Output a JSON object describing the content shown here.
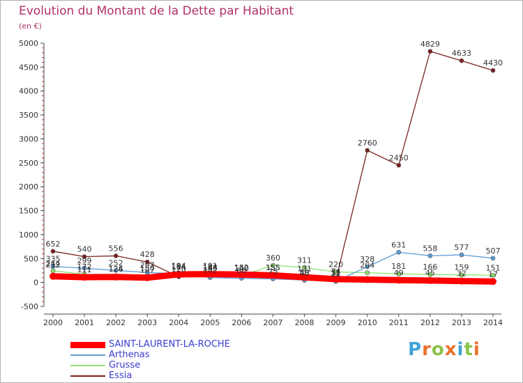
{
  "header": {
    "title": "Evolution du Montant de la Dette par Habitant",
    "subtitle": "(en €)"
  },
  "brand": {
    "text": "Proxiti",
    "letter_colors": [
      "#3fa3d6",
      "#e8702a",
      "#8bc34a",
      "#e8702a",
      "#3fa3d6",
      "#8bc34a",
      "#e8702a"
    ]
  },
  "chart_data": {
    "type": "line",
    "categories": [
      "2000",
      "2001",
      "2002",
      "2003",
      "2004",
      "2005",
      "2006",
      "2007",
      "2008",
      "2009",
      "2010",
      "2011",
      "2012",
      "2013",
      "2014"
    ],
    "ylim": [
      -500,
      5000
    ],
    "yticks": [
      -500,
      0,
      500,
      1000,
      1500,
      2000,
      2500,
      3000,
      3500,
      4000,
      4500,
      5000
    ],
    "grid": false,
    "legend_position": "bottom-left",
    "series": [
      {
        "name": "SAINT-LAURENT-LA-ROCHE",
        "color": "#ff0000",
        "values": [
          130,
          110,
          115,
          100,
          170,
          175,
          165,
          150,
          110,
          70,
          60,
          50,
          40,
          30,
          20
        ],
        "labels": [
          "",
          "",
          "",
          "",
          "",
          "",
          "",
          "",
          "",
          "",
          "",
          "",
          "",
          "",
          ""
        ]
      },
      {
        "name": "Arthenas",
        "color": "#5b9bd5",
        "values": [
          335,
          299,
          252,
          207,
          184,
          102,
          86,
          75,
          50,
          22,
          328,
          631,
          558,
          577,
          507
        ],
        "labels": [
          "335",
          "299",
          "252",
          "207",
          "184",
          "102",
          "86",
          "75",
          "50",
          "22",
          "328",
          "631",
          "558",
          "577",
          "507"
        ]
      },
      {
        "name": "Grusse",
        "color": "#90e070",
        "values": [
          244,
          172,
          124,
          150,
          164,
          164,
          140,
          360,
          311,
          220,
          204,
          181,
          166,
          159,
          151
        ],
        "labels": [
          "244",
          "172",
          "124",
          "150",
          "164",
          "164",
          "140",
          "",
          "",
          "220",
          "204",
          "181",
          "166",
          "159",
          "151"
        ]
      },
      {
        "name": "Essia",
        "color": "#7a2020",
        "values": [
          652,
          540,
          556,
          428,
          120,
          148,
          152,
          155,
          45,
          51,
          2760,
          2450,
          4829,
          4633,
          4430
        ],
        "labels": [
          "652",
          "540",
          "556",
          "428",
          "120",
          "148",
          "152",
          "155",
          "45",
          "51",
          "2760",
          "2450",
          "4829",
          "4633",
          "4430"
        ]
      }
    ],
    "extra_labels": [
      {
        "x": "2000",
        "text": "212",
        "y": 212
      },
      {
        "x": "2001",
        "text": "111",
        "y": 111
      },
      {
        "x": "2002",
        "text": "126",
        "y": 126
      },
      {
        "x": "2003",
        "text": "107",
        "y": 107
      },
      {
        "x": "2004",
        "text": "194",
        "y": 194
      },
      {
        "x": "2005",
        "text": "191",
        "y": 191
      },
      {
        "x": "2006",
        "text": "140",
        "y": 140
      },
      {
        "x": "2007",
        "text": "360",
        "y": 360
      },
      {
        "x": "2007",
        "text": "155",
        "y": 155
      },
      {
        "x": "2007",
        "text": "75",
        "y": 75
      },
      {
        "x": "2008",
        "text": "311",
        "y": 311
      },
      {
        "x": "2008",
        "text": "131",
        "y": 131
      },
      {
        "x": "2008",
        "text": "48",
        "y": 48
      },
      {
        "x": "2009",
        "text": "31",
        "y": 31
      },
      {
        "x": "2009",
        "text": "74",
        "y": 74
      },
      {
        "x": "2011",
        "text": "49",
        "y": 49
      },
      {
        "x": "2012",
        "text": "45",
        "y": 45
      },
      {
        "x": "2013",
        "text": "32",
        "y": 32
      },
      {
        "x": "2014",
        "text": "17",
        "y": 17
      }
    ]
  }
}
